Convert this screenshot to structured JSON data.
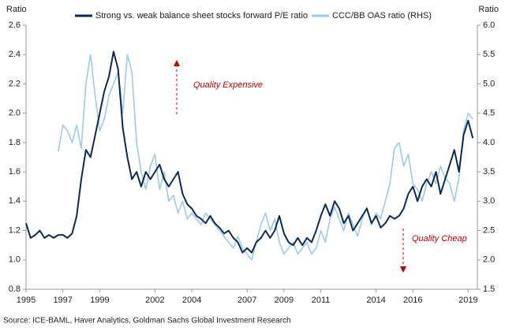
{
  "chart_data": {
    "type": "line",
    "ylabel": "Ratio",
    "y2label": "Ratio",
    "source": "Source: ICE-BAML, Haver Analytics, Goldman Sachs Global Investment Research",
    "annotations": [
      "Quality Expensive",
      "Quality Cheap"
    ],
    "xlim": [
      1995,
      2019.5
    ],
    "xticks": [
      1995,
      1997,
      1999,
      2002,
      2004,
      2007,
      2009,
      2011,
      2014,
      2016,
      2019
    ],
    "ylim": [
      0.8,
      2.6
    ],
    "yticks": [
      0.8,
      {
        "value": 1,
        "label": "1.0"
      },
      1.2,
      1.4,
      1.6,
      1.8,
      {
        "value": 2,
        "label": "2.0"
      },
      2.2,
      2.4,
      2.6
    ],
    "y2lim": [
      1.5,
      6
    ],
    "y2ticks": [
      1.5,
      {
        "value": 2,
        "label": "2.0"
      },
      2.5,
      {
        "value": 3,
        "label": "3.0"
      },
      3.5,
      {
        "value": 4,
        "label": "4.0"
      },
      4.5,
      {
        "value": 5,
        "label": "5.0"
      },
      5.5,
      {
        "value": 6,
        "label": "6.0"
      }
    ],
    "grid": false,
    "x": [
      1995,
      1995.25,
      1995.5,
      1995.75,
      1996,
      1996.25,
      1996.5,
      1996.75,
      1997,
      1997.25,
      1997.5,
      1997.75,
      1998,
      1998.25,
      1998.5,
      1998.75,
      1999,
      1999.25,
      1999.5,
      1999.75,
      2000,
      2000.25,
      2000.5,
      2000.75,
      2001,
      2001.25,
      2001.5,
      2001.75,
      2002,
      2002.25,
      2002.5,
      2002.75,
      2003,
      2003.25,
      2003.5,
      2003.75,
      2004,
      2004.25,
      2004.5,
      2004.75,
      2005,
      2005.25,
      2005.5,
      2005.75,
      2006,
      2006.25,
      2006.5,
      2006.75,
      2007,
      2007.25,
      2007.5,
      2007.75,
      2008,
      2008.25,
      2008.5,
      2008.75,
      2009,
      2009.25,
      2009.5,
      2009.75,
      2010,
      2010.25,
      2010.5,
      2010.75,
      2011,
      2011.25,
      2011.5,
      2011.75,
      2012,
      2012.25,
      2012.5,
      2012.75,
      2013,
      2013.25,
      2013.5,
      2013.75,
      2014,
      2014.25,
      2014.5,
      2014.75,
      2015,
      2015.25,
      2015.5,
      2015.75,
      2016,
      2016.25,
      2016.5,
      2016.75,
      2017,
      2017.25,
      2017.5,
      2017.75,
      2018,
      2018.25,
      2018.5,
      2018.75,
      2019,
      2019.25
    ],
    "series": [
      {
        "name": "Strong vs. weak balance sheet stocks forward P/E ratio",
        "color": "#0b2a55",
        "values": [
          1.25,
          1.15,
          1.17,
          1.2,
          1.15,
          1.17,
          1.15,
          1.17,
          1.17,
          1.15,
          1.18,
          1.3,
          1.55,
          1.75,
          1.7,
          1.85,
          2.0,
          2.15,
          2.25,
          2.42,
          2.3,
          1.9,
          1.7,
          1.55,
          1.6,
          1.5,
          1.6,
          1.55,
          1.6,
          1.65,
          1.55,
          1.5,
          1.55,
          1.6,
          1.45,
          1.38,
          1.35,
          1.3,
          1.28,
          1.25,
          1.3,
          1.25,
          1.22,
          1.18,
          1.2,
          1.15,
          1.12,
          1.05,
          1.08,
          1.05,
          1.12,
          1.15,
          1.2,
          1.15,
          1.2,
          1.3,
          1.18,
          1.12,
          1.1,
          1.15,
          1.1,
          1.15,
          1.12,
          1.2,
          1.3,
          1.38,
          1.3,
          1.4,
          1.35,
          1.25,
          1.3,
          1.2,
          1.25,
          1.3,
          1.35,
          1.25,
          1.3,
          1.22,
          1.25,
          1.3,
          1.28,
          1.3,
          1.35,
          1.45,
          1.5,
          1.4,
          1.5,
          1.55,
          1.5,
          1.6,
          1.45,
          1.55,
          1.65,
          1.75,
          1.6,
          1.85,
          1.95,
          1.83
        ]
      },
      {
        "name": "CCC/BB OAS ratio (RHS)",
        "color": "#9ccbe9",
        "axis": "y2",
        "values": [
          null,
          null,
          null,
          null,
          null,
          null,
          null,
          3.85,
          4.3,
          4.2,
          4.0,
          4.3,
          3.9,
          5.0,
          5.5,
          4.8,
          4.2,
          4.4,
          4.8,
          5.0,
          5.2,
          4.5,
          5.5,
          5.2,
          4.0,
          3.5,
          3.2,
          3.6,
          3.8,
          3.2,
          3.5,
          3.0,
          3.1,
          2.8,
          3.0,
          2.7,
          2.8,
          2.7,
          2.6,
          2.8,
          2.7,
          2.6,
          2.5,
          2.4,
          2.3,
          2.2,
          2.4,
          2.2,
          2.1,
          2.0,
          2.3,
          2.6,
          2.8,
          2.5,
          2.7,
          2.3,
          2.1,
          2.2,
          2.3,
          2.1,
          2.2,
          2.3,
          2.1,
          2.2,
          2.5,
          2.3,
          2.7,
          2.9,
          2.7,
          2.5,
          2.8,
          2.6,
          2.4,
          2.7,
          2.9,
          2.6,
          2.8,
          2.7,
          3.0,
          3.3,
          3.9,
          4.0,
          3.6,
          3.8,
          3.3,
          3.2,
          3.0,
          3.3,
          3.5,
          3.3,
          3.6,
          3.4,
          3.3,
          3.0,
          3.4,
          4.2,
          4.5,
          4.4
        ]
      }
    ]
  }
}
